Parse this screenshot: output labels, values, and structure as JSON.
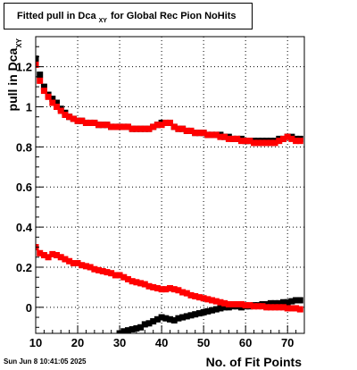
{
  "title": {
    "prefix": "Fitted pull in Dca",
    "subscript": "XY",
    "suffix": "for Global Rec Pion NoHits"
  },
  "timestamp": "Sun Jun  8 10:41:05 2025",
  "colors": {
    "series_black": "#000000",
    "series_red": "#ff0000",
    "grid": "#000000"
  },
  "chart_data": {
    "type": "scatter",
    "xlabel": "No. of Fit Points",
    "ylabel": {
      "main": "pull in Dca",
      "subscript": "XY"
    },
    "xlim": [
      10,
      74
    ],
    "ylim": [
      -0.13,
      1.35
    ],
    "x_ticks": [
      10,
      20,
      30,
      40,
      50,
      60,
      70
    ],
    "y_ticks": [
      0,
      0.2,
      0.4,
      0.6,
      0.8,
      1,
      1.2
    ],
    "y_tick_labels": [
      "0",
      "0.2",
      "0.4",
      "0.6",
      "0.8",
      "1",
      "1.2"
    ],
    "grid": true,
    "series": [
      {
        "marker": "square",
        "color": "#000000",
        "x": [
          10,
          11,
          12,
          13,
          14,
          15,
          16,
          17,
          18,
          19,
          20,
          21,
          22,
          23,
          24,
          25,
          26,
          27,
          28,
          29,
          30,
          31,
          32,
          33,
          34,
          35,
          36,
          37,
          38,
          39,
          40,
          41,
          42,
          43,
          44,
          45,
          46,
          47,
          48,
          49,
          50,
          51,
          52,
          53,
          54,
          55,
          56,
          57,
          58,
          59,
          60,
          61,
          62,
          63,
          64,
          65,
          66,
          67,
          68,
          69,
          70,
          71,
          72,
          73
        ],
        "y": [
          1.24,
          1.16,
          1.1,
          1.06,
          1.04,
          1.02,
          0.99,
          0.97,
          0.95,
          0.94,
          0.93,
          0.93,
          0.92,
          0.92,
          0.92,
          0.91,
          0.91,
          0.91,
          0.9,
          0.9,
          0.9,
          0.9,
          0.9,
          0.89,
          0.89,
          0.89,
          0.89,
          0.89,
          0.9,
          0.91,
          0.92,
          0.92,
          0.92,
          0.9,
          0.89,
          0.89,
          0.88,
          0.88,
          0.87,
          0.87,
          0.87,
          0.86,
          0.86,
          0.86,
          0.86,
          0.85,
          0.85,
          0.84,
          0.84,
          0.84,
          0.83,
          0.83,
          0.83,
          0.83,
          0.83,
          0.83,
          0.83,
          0.83,
          0.84,
          0.84,
          0.85,
          0.85,
          0.84,
          0.84
        ]
      },
      {
        "marker": "square",
        "color": "#ff0000",
        "x": [
          10,
          11,
          12,
          13,
          14,
          15,
          16,
          17,
          18,
          19,
          20,
          21,
          22,
          23,
          24,
          25,
          26,
          27,
          28,
          29,
          30,
          31,
          32,
          33,
          34,
          35,
          36,
          37,
          38,
          39,
          40,
          41,
          42,
          43,
          44,
          45,
          46,
          47,
          48,
          49,
          50,
          51,
          52,
          53,
          54,
          55,
          56,
          57,
          58,
          59,
          60,
          61,
          62,
          63,
          64,
          65,
          66,
          67,
          68,
          69,
          70,
          71,
          72,
          73
        ],
        "y": [
          1.21,
          1.13,
          1.08,
          1.05,
          1.02,
          1.0,
          0.98,
          0.96,
          0.95,
          0.94,
          0.93,
          0.93,
          0.92,
          0.92,
          0.92,
          0.91,
          0.91,
          0.91,
          0.9,
          0.9,
          0.9,
          0.9,
          0.9,
          0.89,
          0.89,
          0.89,
          0.89,
          0.89,
          0.9,
          0.91,
          0.91,
          0.92,
          0.92,
          0.9,
          0.89,
          0.89,
          0.88,
          0.88,
          0.87,
          0.87,
          0.87,
          0.86,
          0.86,
          0.86,
          0.85,
          0.85,
          0.84,
          0.84,
          0.84,
          0.83,
          0.83,
          0.83,
          0.82,
          0.82,
          0.82,
          0.82,
          0.82,
          0.82,
          0.83,
          0.84,
          0.85,
          0.84,
          0.83,
          0.83
        ]
      },
      {
        "marker": "square",
        "color": "#000000",
        "x": [
          30,
          31,
          32,
          33,
          34,
          35,
          36,
          37,
          38,
          39,
          40,
          41,
          42,
          43,
          44,
          45,
          46,
          47,
          48,
          49,
          50,
          51,
          52,
          53,
          54,
          55,
          56,
          57,
          58,
          59,
          60,
          61,
          62,
          63,
          64,
          65,
          66,
          67,
          68,
          69,
          70,
          71,
          72,
          73
        ],
        "y": [
          -0.13,
          -0.12,
          -0.115,
          -0.11,
          -0.105,
          -0.1,
          -0.085,
          -0.08,
          -0.07,
          -0.06,
          -0.05,
          -0.055,
          -0.06,
          -0.065,
          -0.055,
          -0.05,
          -0.045,
          -0.04,
          -0.035,
          -0.03,
          -0.025,
          -0.02,
          -0.015,
          -0.01,
          -0.005,
          0.0,
          0.0,
          0.005,
          0.005,
          0.0,
          0.005,
          0.005,
          0.01,
          0.01,
          0.015,
          0.015,
          0.02,
          0.02,
          0.02,
          0.025,
          0.025,
          0.03,
          0.035,
          0.035
        ]
      },
      {
        "marker": "square",
        "color": "#ff0000",
        "x": [
          10,
          11,
          12,
          13,
          14,
          15,
          16,
          17,
          18,
          19,
          20,
          21,
          22,
          23,
          24,
          25,
          26,
          27,
          28,
          29,
          30,
          31,
          32,
          33,
          34,
          35,
          36,
          37,
          38,
          39,
          40,
          41,
          42,
          43,
          44,
          45,
          46,
          47,
          48,
          49,
          50,
          51,
          52,
          53,
          54,
          55,
          56,
          57,
          58,
          59,
          60,
          61,
          62,
          63,
          64,
          65,
          66,
          67,
          68,
          69,
          70,
          71,
          72,
          73
        ],
        "y": [
          0.3,
          0.27,
          0.26,
          0.25,
          0.265,
          0.26,
          0.25,
          0.24,
          0.23,
          0.22,
          0.22,
          0.21,
          0.205,
          0.2,
          0.19,
          0.185,
          0.18,
          0.175,
          0.17,
          0.16,
          0.16,
          0.15,
          0.14,
          0.13,
          0.125,
          0.12,
          0.115,
          0.105,
          0.1,
          0.095,
          0.09,
          0.09,
          0.095,
          0.09,
          0.085,
          0.075,
          0.07,
          0.06,
          0.055,
          0.05,
          0.045,
          0.04,
          0.035,
          0.03,
          0.025,
          0.02,
          0.015,
          0.015,
          0.015,
          0.015,
          0.01,
          0.01,
          0.005,
          0.005,
          0.005,
          0.0,
          0.0,
          0.0,
          0.0,
          0.0,
          -0.005,
          -0.005,
          -0.005,
          -0.01
        ]
      }
    ]
  }
}
